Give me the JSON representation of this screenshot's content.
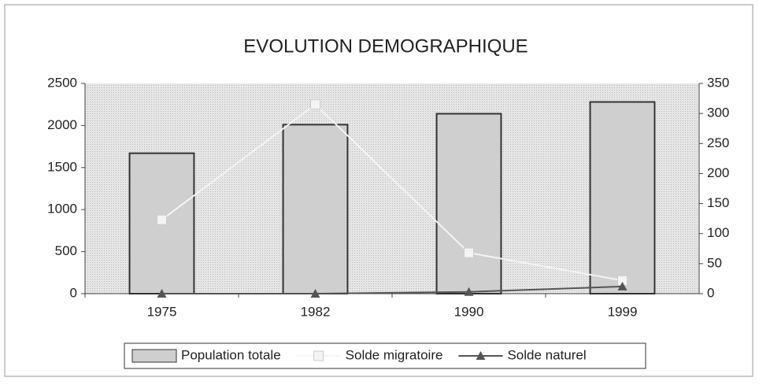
{
  "chart_data": {
    "type": "bar",
    "title": "EVOLUTION DEMOGRAPHIQUE",
    "categories": [
      "1975",
      "1982",
      "1990",
      "1999"
    ],
    "series": [
      {
        "name": "Population totale",
        "type": "bar",
        "color": "#cfcfcf",
        "values": [
          1670,
          2010,
          2140,
          2280
        ]
      },
      {
        "name": "Solde migratoire",
        "type": "line",
        "axis": "y2",
        "color": "#f4f4f4",
        "values": [
          123,
          315,
          68,
          22
        ]
      },
      {
        "name": "Solde naturel",
        "type": "line",
        "axis": "y2",
        "color": "#555555",
        "values": [
          0,
          0,
          3,
          12
        ]
      }
    ],
    "ylim": [
      0,
      2500
    ],
    "yticks": [
      0,
      500,
      1000,
      1500,
      2000,
      2500
    ],
    "y2lim": [
      0,
      350
    ],
    "y2ticks": [
      0,
      50,
      100,
      150,
      200,
      250,
      300,
      350
    ],
    "legend": "bottom"
  }
}
